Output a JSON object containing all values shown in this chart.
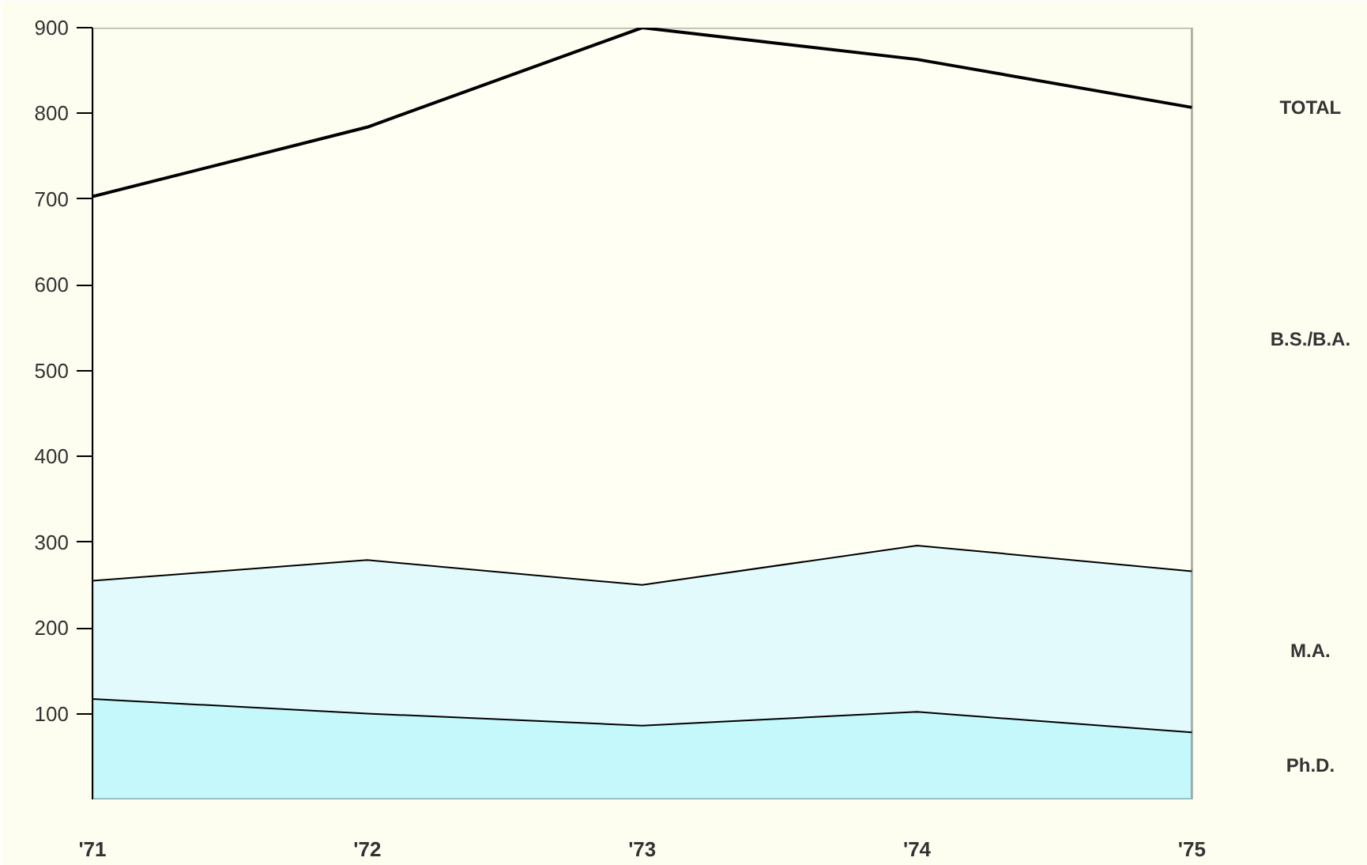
{
  "chart_data": {
    "type": "area",
    "stacked": true,
    "categories": [
      "'71",
      "'72",
      "'73",
      "'74",
      "'75"
    ],
    "series": [
      {
        "name": "Ph.D.",
        "color": "#c4f8fa",
        "values": [
          118,
          101,
          87,
          103,
          79
        ]
      },
      {
        "name": "M.A.",
        "color": "#e2fafc",
        "values": [
          138,
          179,
          164,
          194,
          188
        ]
      },
      {
        "name": "B.S./B.A.",
        "color": "#fffff4",
        "values": [
          447,
          504,
          649,
          566,
          540
        ]
      }
    ],
    "ylim": [
      0,
      900
    ],
    "yticks": [
      100,
      200,
      300,
      400,
      500,
      600,
      700,
      800,
      900
    ],
    "annotations": [
      "TOTAL"
    ],
    "grid": false
  }
}
